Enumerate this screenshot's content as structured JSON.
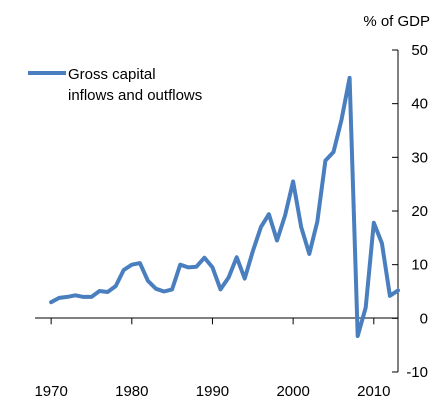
{
  "chart_data": {
    "type": "line",
    "title": "",
    "xlabel": "",
    "ylabel": "% of GDP",
    "xlim": [
      1968,
      2013
    ],
    "ylim": [
      -10,
      50
    ],
    "x_ticks": [
      1970,
      1980,
      1990,
      2000,
      2010
    ],
    "y_ticks": [
      -10,
      0,
      10,
      20,
      30,
      40,
      50
    ],
    "grid": false,
    "legend_position": "top-left",
    "colors": {
      "series": "#4a7fbf",
      "axis": "#000000"
    },
    "series": [
      {
        "name": "Gross capital\ninflows and outflows",
        "x": [
          1970,
          1971,
          1972,
          1973,
          1974,
          1975,
          1976,
          1977,
          1978,
          1979,
          1980,
          1981,
          1982,
          1983,
          1984,
          1985,
          1986,
          1987,
          1988,
          1989,
          1990,
          1991,
          1992,
          1993,
          1994,
          1995,
          1996,
          1997,
          1998,
          1999,
          2000,
          2001,
          2002,
          2003,
          2004,
          2005,
          2006,
          2007,
          2008,
          2009,
          2010,
          2011,
          2012,
          2013
        ],
        "values": [
          3.0,
          3.8,
          4.0,
          4.3,
          4.0,
          4.0,
          5.1,
          4.9,
          6.0,
          9.0,
          10.0,
          10.3,
          7.0,
          5.5,
          5.0,
          5.4,
          10.0,
          9.5,
          9.6,
          11.3,
          9.5,
          5.4,
          7.6,
          11.4,
          7.4,
          12.5,
          17.0,
          19.4,
          14.5,
          19.2,
          25.5,
          17.0,
          12.0,
          18.0,
          29.4,
          31.0,
          37.0,
          44.8,
          -3.3,
          2.0,
          17.8,
          14.0,
          4.2,
          5.2
        ]
      }
    ]
  }
}
